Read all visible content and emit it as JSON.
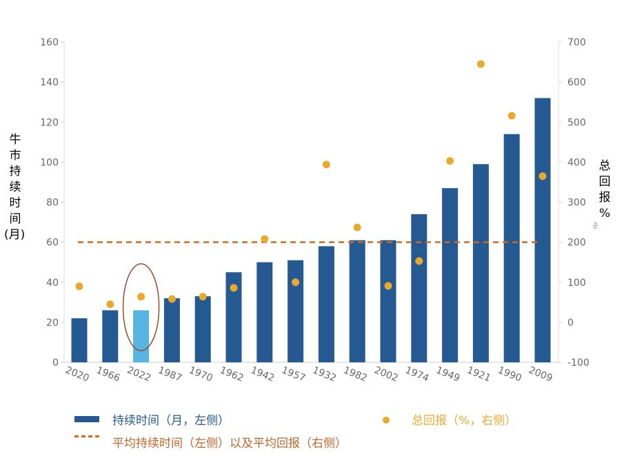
{
  "chart_data": {
    "type": "bar+scatter",
    "categories": [
      "2020",
      "1966",
      "2022",
      "1987",
      "1970",
      "1962",
      "1942",
      "1957",
      "1932",
      "1982",
      "2002",
      "1974",
      "1949",
      "1921",
      "1990",
      "2009"
    ],
    "series": [
      {
        "name": "持续时间（月，左侧）",
        "type": "bar",
        "axis": "left",
        "values": [
          22,
          26,
          26,
          32,
          33,
          45,
          50,
          51,
          58,
          61,
          61,
          74,
          87,
          99,
          114,
          132
        ]
      },
      {
        "name": "总回报（%，右侧）",
        "type": "scatter",
        "axis": "right",
        "values": [
          90,
          45,
          64,
          58,
          64,
          86,
          208,
          100,
          394,
          237,
          91,
          153,
          403,
          645,
          516,
          365
        ]
      }
    ],
    "average": {
      "name": "平均持续时间（左侧）以及平均回报（右侧）",
      "left_value": 60,
      "right_value": 200
    },
    "highlight_category": "2022",
    "ylabel_left": "牛市持续时间(月)",
    "ylabel_right": "总回报%",
    "right_axis_unit": "%",
    "ylim_left": [
      0,
      160
    ],
    "yticks_left": [
      0,
      20,
      40,
      60,
      80,
      100,
      120,
      140,
      160
    ],
    "ylim_right": [
      -100,
      700
    ],
    "yticks_right": [
      -100,
      0,
      100,
      200,
      300,
      400,
      500,
      600,
      700
    ],
    "legend_placement": "bottom",
    "colors": {
      "bar": "#245a91",
      "highlight": "#56b4e3",
      "dot": "#eaa92e",
      "average": "#d2691e",
      "ellipse": "#a0472a"
    }
  }
}
